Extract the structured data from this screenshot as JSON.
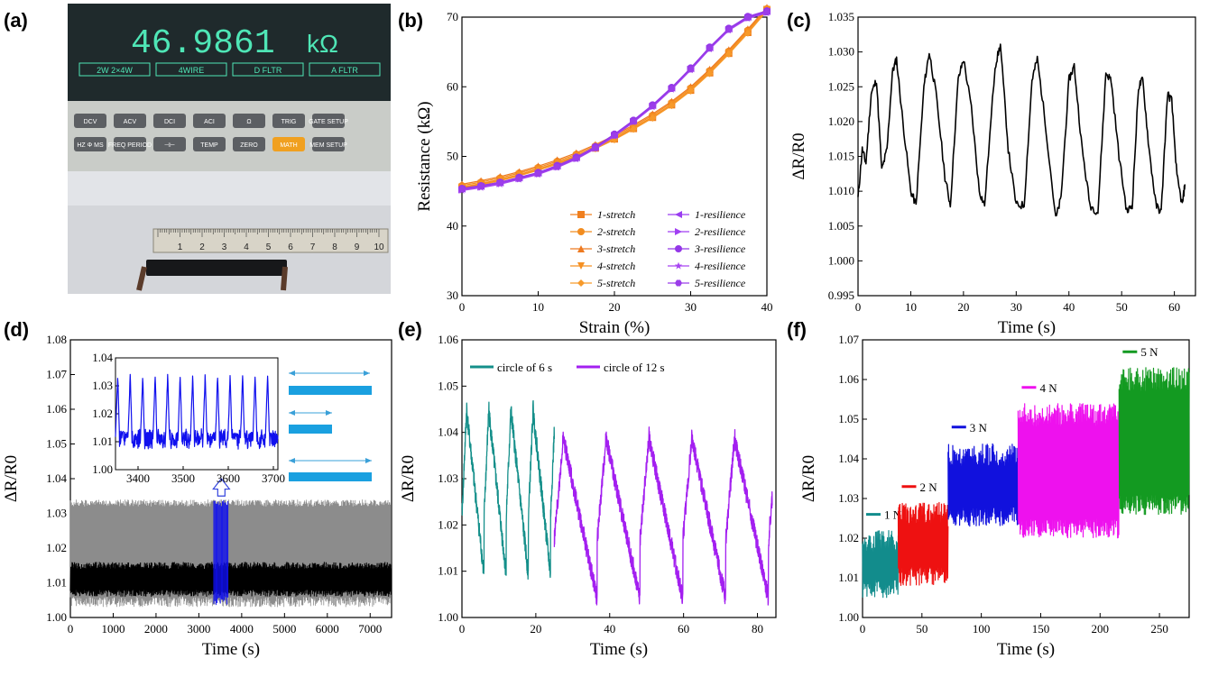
{
  "panel_labels": [
    "(a)",
    "(b)",
    "(c)",
    "(d)",
    "(e)",
    "(f)"
  ],
  "photo": {
    "display_value": "46.9861",
    "display_unit": "kΩ",
    "display_tabs": [
      "2W 2×4W",
      "4WIRE",
      "D FLTR",
      "A FLTR"
    ],
    "buttons_row1": [
      "DCV",
      "ACV",
      "DCI",
      "ACI",
      "Ω",
      "TRIG",
      "GATE SETUP"
    ],
    "buttons_row2": [
      "HZ Φ MS",
      "FREQ PERIOD",
      "⊣⊢",
      "TEMP",
      "ZERO",
      "MATH",
      "MEM SETUP"
    ],
    "ruler_numbers": [
      "1",
      "2",
      "3",
      "4",
      "5",
      "6",
      "7",
      "8",
      "9",
      "10"
    ]
  },
  "chart_data": [
    {
      "id": "b",
      "type": "line",
      "xlabel": "Strain (%)",
      "ylabel": "Resistance (kΩ)",
      "xlim": [
        0,
        40
      ],
      "ylim": [
        30,
        70
      ],
      "xticks": [
        0,
        10,
        20,
        30,
        40
      ],
      "yticks": [
        30,
        40,
        50,
        60,
        70
      ],
      "x": [
        0,
        2.5,
        5,
        7.5,
        10,
        12.5,
        15,
        17.5,
        20,
        22.5,
        25,
        27.5,
        30,
        32.5,
        35,
        37.5,
        40
      ],
      "series": [
        {
          "name": "1-stretch",
          "marker": "square",
          "color": "#f07f1e",
          "values": [
            45.5,
            46.0,
            46.6,
            47.3,
            48.1,
            49.0,
            50.0,
            51.2,
            52.5,
            54.0,
            55.6,
            57.4,
            59.5,
            62.0,
            64.8,
            67.8,
            71.0
          ]
        },
        {
          "name": "2-stretch",
          "marker": "circle",
          "color": "#f28c1f",
          "values": [
            45.8,
            46.3,
            46.9,
            47.6,
            48.4,
            49.3,
            50.3,
            51.5,
            52.8,
            54.3,
            55.9,
            57.7,
            59.8,
            62.3,
            65.1,
            68.1,
            71.2
          ]
        },
        {
          "name": "3-stretch",
          "marker": "triangle-up",
          "color": "#ee7a20",
          "values": [
            46.0,
            46.5,
            47.1,
            47.8,
            48.6,
            49.5,
            50.5,
            51.7,
            53.0,
            54.5,
            56.1,
            57.9,
            60.0,
            62.5,
            65.3,
            68.3,
            71.4
          ]
        },
        {
          "name": "4-stretch",
          "marker": "triangle-down",
          "color": "#f59023",
          "values": [
            45.6,
            46.1,
            46.7,
            47.4,
            48.2,
            49.1,
            50.1,
            51.3,
            52.6,
            54.1,
            55.7,
            57.5,
            59.6,
            62.1,
            64.9,
            67.9,
            71.1
          ]
        },
        {
          "name": "5-stretch",
          "marker": "diamond",
          "color": "#f79a2a",
          "values": [
            45.4,
            45.9,
            46.5,
            47.2,
            48.0,
            48.9,
            49.9,
            51.1,
            52.4,
            53.9,
            55.5,
            57.3,
            59.4,
            61.9,
            64.7,
            67.7,
            70.9
          ]
        },
        {
          "name": "1-resilience",
          "marker": "triangle-left",
          "color": "#9a3df0",
          "values": [
            45.3,
            45.7,
            46.2,
            46.9,
            47.6,
            48.6,
            49.8,
            51.3,
            53.1,
            55.1,
            57.3,
            59.8,
            62.6,
            65.6,
            68.3,
            70.0,
            70.8
          ]
        },
        {
          "name": "2-resilience",
          "marker": "triangle-right",
          "color": "#a13ff2",
          "values": [
            45.2,
            45.6,
            46.1,
            46.8,
            47.5,
            48.5,
            49.7,
            51.2,
            53.0,
            55.0,
            57.2,
            59.7,
            62.5,
            65.5,
            68.2,
            69.9,
            70.7
          ]
        },
        {
          "name": "3-resilience",
          "marker": "circle",
          "color": "#9437e8",
          "values": [
            45.4,
            45.8,
            46.3,
            47.0,
            47.7,
            48.7,
            49.9,
            51.4,
            53.2,
            55.2,
            57.4,
            59.9,
            62.7,
            65.7,
            68.4,
            70.1,
            70.9
          ]
        },
        {
          "name": "4-resilience",
          "marker": "star",
          "color": "#a845f2",
          "values": [
            45.1,
            45.5,
            46.0,
            46.7,
            47.4,
            48.4,
            49.6,
            51.1,
            52.9,
            54.9,
            57.1,
            59.6,
            62.4,
            65.4,
            68.1,
            69.8,
            70.6
          ]
        },
        {
          "name": "5-resilience",
          "marker": "hexagon",
          "color": "#9b3de9",
          "values": [
            45.3,
            45.7,
            46.2,
            46.8,
            47.5,
            48.5,
            49.7,
            51.2,
            53.0,
            55.0,
            57.2,
            59.7,
            62.5,
            65.5,
            68.2,
            69.9,
            70.7
          ]
        }
      ]
    },
    {
      "id": "c",
      "type": "line",
      "xlabel": "Time (s)",
      "ylabel": "ΔR/R0",
      "xlim": [
        0,
        64
      ],
      "ylim": [
        0.995,
        1.035
      ],
      "xticks": [
        0,
        10,
        20,
        30,
        40,
        50,
        60
      ],
      "yticks": [
        0.995,
        1.0,
        1.005,
        1.01,
        1.015,
        1.02,
        1.025,
        1.03,
        1.035
      ],
      "series": [
        {
          "name": "signal",
          "color": "#000000",
          "points": [
            [
              0,
              1.009
            ],
            [
              0.8,
              1.016
            ],
            [
              1.5,
              1.014
            ],
            [
              2.5,
              1.024
            ],
            [
              3.5,
              1.026
            ],
            [
              4.5,
              1.013
            ],
            [
              5.5,
              1.016
            ],
            [
              6.5,
              1.027
            ],
            [
              7.3,
              1.029
            ],
            [
              8.5,
              1.02
            ],
            [
              10,
              1.01
            ],
            [
              11,
              1.008
            ],
            [
              12.5,
              1.025
            ],
            [
              13.5,
              1.03
            ],
            [
              14.8,
              1.024
            ],
            [
              16.5,
              1.012
            ],
            [
              17.5,
              1.008
            ],
            [
              19,
              1.026
            ],
            [
              20,
              1.029
            ],
            [
              21.5,
              1.022
            ],
            [
              23,
              1.01
            ],
            [
              24,
              1.008
            ],
            [
              26,
              1.028
            ],
            [
              27,
              1.031
            ],
            [
              28.5,
              1.016
            ],
            [
              30,
              1.008
            ],
            [
              31.5,
              1.008
            ],
            [
              33,
              1.026
            ],
            [
              34,
              1.029
            ],
            [
              35.5,
              1.02
            ],
            [
              37.5,
              1.006
            ],
            [
              38.5,
              1.009
            ],
            [
              40,
              1.026
            ],
            [
              41,
              1.028
            ],
            [
              42.5,
              1.016
            ],
            [
              44,
              1.008
            ],
            [
              45.5,
              1.007
            ],
            [
              47,
              1.027
            ],
            [
              48,
              1.026
            ],
            [
              49.5,
              1.015
            ],
            [
              51,
              1.007
            ],
            [
              52,
              1.008
            ],
            [
              53.2,
              1.025
            ],
            [
              54,
              1.026
            ],
            [
              55.2,
              1.016
            ],
            [
              56.5,
              1.008
            ],
            [
              57.5,
              1.007
            ],
            [
              58.7,
              1.024
            ],
            [
              59.5,
              1.023
            ],
            [
              60.5,
              1.012
            ],
            [
              61.5,
              1.008
            ],
            [
              62,
              1.011
            ]
          ]
        }
      ]
    },
    {
      "id": "d",
      "type": "line",
      "xlabel": "Time (s)",
      "ylabel": "ΔR/R0",
      "xlim": [
        0,
        7500
      ],
      "ylim": [
        1.0,
        1.08
      ],
      "xticks": [
        0,
        1000,
        2000,
        3000,
        4000,
        5000,
        6000,
        7000
      ],
      "yticks": [
        1.0,
        1.01,
        1.02,
        1.03,
        1.04,
        1.05,
        1.06,
        1.07,
        1.08
      ],
      "band": {
        "ymin": 1.003,
        "ymax": 1.034,
        "core_min": 1.006,
        "core_max": 1.016
      },
      "highlight": {
        "xmin": 3350,
        "xmax": 3700,
        "color": "#1010ee"
      },
      "inset": {
        "type": "line",
        "xlim": [
          3350,
          3710
        ],
        "ylim": [
          1.0,
          1.04
        ],
        "xticks": [
          3400,
          3500,
          3600,
          3700
        ],
        "yticks": [
          1.0,
          1.01,
          1.02,
          1.03,
          1.04
        ],
        "cycles": 13,
        "peak": 1.034,
        "base": 1.011,
        "color": "#1010ee"
      }
    },
    {
      "id": "e",
      "type": "line",
      "xlabel": "Time (s)",
      "ylabel": "ΔR/R0",
      "xlim": [
        0,
        85
      ],
      "ylim": [
        1.0,
        1.06
      ],
      "xticks": [
        0,
        20,
        40,
        60,
        80
      ],
      "yticks": [
        1.0,
        1.01,
        1.02,
        1.03,
        1.04,
        1.05,
        1.06
      ],
      "series": [
        {
          "name": "circle of 6 s",
          "color": "#148f8a",
          "t_start": 0,
          "t_end": 25,
          "period": 6,
          "peak": 1.046,
          "base": 1.009
        },
        {
          "name": "circle of 12 s",
          "color": "#a31ff0",
          "t_start": 25,
          "t_end": 84,
          "period": 11.6,
          "peak": 1.04,
          "base": 1.004
        }
      ]
    },
    {
      "id": "f",
      "type": "line",
      "xlabel": "Time (s)",
      "ylabel": "ΔR/R0",
      "xlim": [
        0,
        275
      ],
      "ylim": [
        1.0,
        1.07
      ],
      "xticks": [
        0,
        50,
        100,
        150,
        200,
        250
      ],
      "yticks": [
        1.0,
        1.01,
        1.02,
        1.03,
        1.04,
        1.05,
        1.06,
        1.07
      ],
      "series": [
        {
          "name": "1 N",
          "color": "#128c8c",
          "t_start": 0,
          "t_end": 30,
          "low": 1.005,
          "high": 1.022
        },
        {
          "name": "2 N",
          "color": "#ee1111",
          "t_start": 30,
          "t_end": 72,
          "low": 1.008,
          "high": 1.029
        },
        {
          "name": "3 N",
          "color": "#1111dd",
          "t_start": 72,
          "t_end": 131,
          "low": 1.023,
          "high": 1.044
        },
        {
          "name": "4 N",
          "color": "#ee11ee",
          "t_start": 131,
          "t_end": 216,
          "low": 1.02,
          "high": 1.054
        },
        {
          "name": "5 N",
          "color": "#139a21",
          "t_start": 216,
          "t_end": 275,
          "low": 1.026,
          "high": 1.063
        }
      ]
    }
  ]
}
